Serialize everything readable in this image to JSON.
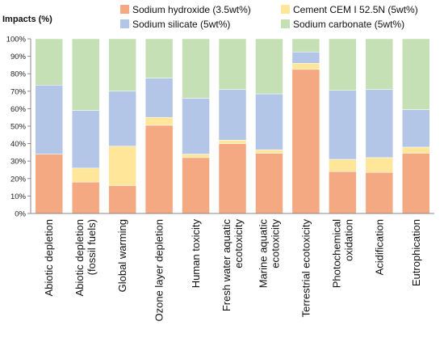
{
  "chart_data": {
    "type": "bar",
    "stacked": true,
    "ylabel": "Impacts (%)",
    "ylim": [
      0,
      100
    ],
    "yticks": [
      "0%",
      "10%",
      "20%",
      "30%",
      "40%",
      "50%",
      "60%",
      "70%",
      "80%",
      "90%",
      "100%"
    ],
    "grid": false,
    "legend_position": "top",
    "categories": [
      "Abiotic depletion",
      "Abiotic depletion (fossil fuels)",
      "Global warming",
      "Ozone layer depletion",
      "Human toxicity",
      "Fresh water aquatic ecotoxicity",
      "Marine aquatic ecotoxicity",
      "Terrestrial ecotoxicity",
      "Photochemical oxidation",
      "Acidification",
      "Eutrophication"
    ],
    "category_lines": [
      [
        "Abiotic depletion"
      ],
      [
        "Abiotic depletion",
        "(fossil fuels)"
      ],
      [
        "Global warming"
      ],
      [
        "Ozone layer depletion"
      ],
      [
        "Human toxicity"
      ],
      [
        "Fresh water aquatic",
        "ecotoxicity"
      ],
      [
        "Marine aquatic",
        "ecotoxicity"
      ],
      [
        "Terrestrial ecotoxicity"
      ],
      [
        "Photochemical",
        "oxidation"
      ],
      [
        "Acidification"
      ],
      [
        "Eutrophication"
      ]
    ],
    "series": [
      {
        "name": "Sodium hydroxide (3.5wt%)",
        "color": "#f4a982",
        "values": [
          34,
          18,
          16,
          50.5,
          32,
          40,
          34.5,
          82.5,
          24,
          23.5,
          34.5
        ]
      },
      {
        "name": "Cement CEM I 52.5N (5wt%)",
        "color": "#ffe699",
        "values": [
          0,
          8,
          22.5,
          4.5,
          2,
          2,
          2,
          3.5,
          7,
          8.5,
          3.5
        ]
      },
      {
        "name": "Sodium silicate (5wt%)",
        "color": "#b4c6e7",
        "values": [
          39.5,
          33,
          31.5,
          22.5,
          32,
          29,
          32,
          6.5,
          39.5,
          39,
          21.5
        ]
      },
      {
        "name": "Sodium carbonate (5wt%)",
        "color": "#c5e0b4",
        "values": [
          26.5,
          41,
          30,
          22.5,
          34,
          29,
          31.5,
          7.5,
          29.5,
          29,
          40.5
        ]
      }
    ]
  }
}
